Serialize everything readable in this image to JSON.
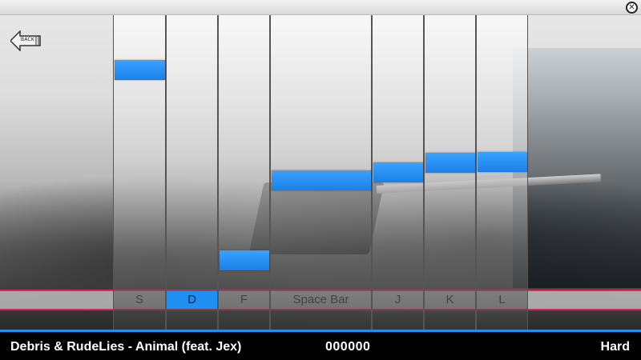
{
  "window": {
    "close_icon": "close-icon"
  },
  "back_button": {
    "label": "BACK",
    "icon": "arrow-left-icon"
  },
  "lanes": [
    {
      "key": "S",
      "active": false
    },
    {
      "key": "D",
      "active": true
    },
    {
      "key": "F",
      "active": false
    },
    {
      "key": "Space Bar",
      "active": false
    },
    {
      "key": "J",
      "active": false
    },
    {
      "key": "K",
      "active": false
    },
    {
      "key": "L",
      "active": false
    }
  ],
  "colors": {
    "note": "#1f8ff2",
    "hit_line": "#d8285a",
    "accent": "#1f8ff2"
  },
  "status": {
    "song_title": "Debris & RudeLies - Animal (feat. Jex)",
    "score": "000000",
    "difficulty": "Hard"
  }
}
